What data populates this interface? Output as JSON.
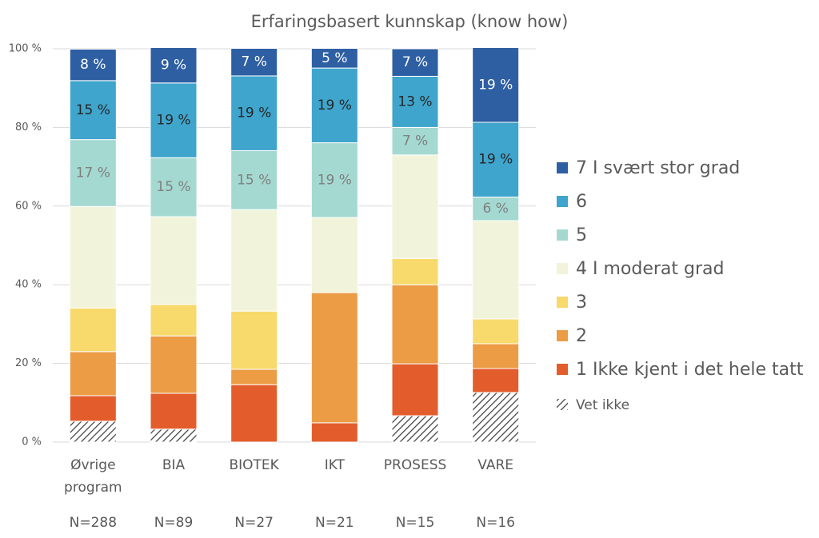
{
  "chart_data": {
    "type": "stacked_bar",
    "title": "Erfaringsbasert kunnskap (know how)",
    "categories": [
      "Øvrige program",
      "BIA",
      "BIOTEK",
      "IKT",
      "PROSESS",
      "VARE"
    ],
    "n_labels": [
      "N=288",
      "N=89",
      "N=27",
      "N=21",
      "N=15",
      "N=16"
    ],
    "ylim": [
      0,
      100
    ],
    "yticks": [
      {
        "value": 0,
        "label": "0 %"
      },
      {
        "value": 20,
        "label": "20 %"
      },
      {
        "value": 40,
        "label": "40 %"
      },
      {
        "value": 60,
        "label": "60 %"
      },
      {
        "value": 80,
        "label": "80 %"
      },
      {
        "value": 100,
        "label": "100 %"
      }
    ],
    "grid": true,
    "legend": "right",
    "series": [
      {
        "name": "Vet ikke",
        "color": "#404040",
        "hatch": true,
        "values": [
          5.3,
          3.3,
          0,
          0,
          6.7,
          12.6
        ]
      },
      {
        "name": "1 Ikke kjent i det hele tatt",
        "color": "#e35d2c",
        "values": [
          6.5,
          9.1,
          14.6,
          4.9,
          13.2,
          6.1
        ]
      },
      {
        "name": "2",
        "color": "#ec9c45",
        "values": [
          11.2,
          14.6,
          3.9,
          33.1,
          20.1,
          6.3
        ]
      },
      {
        "name": "3",
        "color": "#f8d96c",
        "values": [
          11.1,
          8.0,
          14.8,
          0,
          6.7,
          6.3
        ]
      },
      {
        "name": "4 I moderat grad",
        "color": "#f1f4da",
        "values": [
          25.8,
          22.3,
          25.8,
          19.1,
          26.3,
          25.0
        ]
      },
      {
        "name": "5",
        "color": "#a4d9d1",
        "label_color": "#7f7f7f",
        "values": [
          17,
          15,
          15,
          19,
          7,
          6
        ],
        "value_labels": [
          "17 %",
          "15 %",
          "15 %",
          "19 %",
          "7 %",
          "6 %"
        ]
      },
      {
        "name": "6",
        "color": "#3fa5cd",
        "label_color": "#262626",
        "values": [
          15,
          19,
          19,
          19,
          13,
          19
        ],
        "value_labels": [
          "15 %",
          "19 %",
          "19 %",
          "19 %",
          "13 %",
          "19 %"
        ]
      },
      {
        "name": "7 I svært stor grad",
        "color": "#2e5fa3",
        "label_color": "#ffffff",
        "values": [
          8,
          9,
          7,
          5,
          7,
          19
        ],
        "value_labels": [
          "8 %",
          "9 %",
          "7 %",
          "5 %",
          "7 %",
          "19 %"
        ]
      }
    ]
  }
}
